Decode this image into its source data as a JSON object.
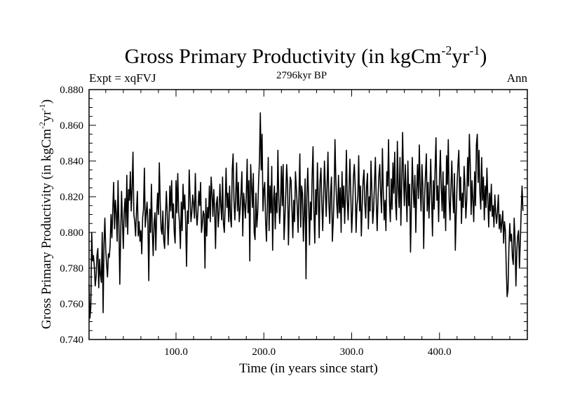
{
  "chart_data": {
    "type": "line",
    "title": "Gross Primary Productivity (in kgCm",
    "title_sup1": "-2",
    "title_mid": "yr",
    "title_sup2": "-1",
    "title_end": ")",
    "subtitle_left": "Expt = xqFVJ",
    "subtitle_center": "2796kyr BP",
    "subtitle_right": "Ann",
    "xlabel": "Time (in years since start)",
    "ylabel": "Gross Primary Productivity (in kgCm",
    "ylabel_sup1": "-2",
    "ylabel_mid": "yr",
    "ylabel_sup2": "-1",
    "ylabel_end": ")",
    "xlim": [
      1,
      500
    ],
    "ylim": [
      0.74,
      0.88
    ],
    "x_ticks": [
      100,
      200,
      300,
      400
    ],
    "x_tick_labels": [
      "100.0",
      "200.0",
      "300.0",
      "400.0"
    ],
    "y_ticks": [
      0.74,
      0.76,
      0.78,
      0.8,
      0.82,
      0.84,
      0.86,
      0.88
    ],
    "y_tick_labels": [
      "0.740",
      "0.760",
      "0.780",
      "0.800",
      "0.820",
      "0.840",
      "0.860",
      "0.880"
    ],
    "grid": false,
    "series": [
      {
        "name": "Gross Primary Productivity",
        "x_start": 1,
        "x_step": 1,
        "values": [
          0.771,
          0.752,
          0.758,
          0.8,
          0.784,
          0.787,
          0.781,
          0.77,
          0.775,
          0.787,
          0.791,
          0.769,
          0.785,
          0.776,
          0.772,
          0.8,
          0.755,
          0.793,
          0.808,
          0.79,
          0.782,
          0.775,
          0.788,
          0.786,
          0.793,
          0.81,
          0.797,
          0.813,
          0.828,
          0.802,
          0.818,
          0.811,
          0.795,
          0.829,
          0.804,
          0.771,
          0.799,
          0.823,
          0.806,
          0.791,
          0.812,
          0.819,
          0.803,
          0.832,
          0.799,
          0.824,
          0.818,
          0.834,
          0.812,
          0.825,
          0.845,
          0.81,
          0.806,
          0.798,
          0.812,
          0.823,
          0.798,
          0.806,
          0.795,
          0.801,
          0.788,
          0.808,
          0.813,
          0.836,
          0.803,
          0.81,
          0.817,
          0.805,
          0.773,
          0.813,
          0.8,
          0.827,
          0.801,
          0.787,
          0.805,
          0.811,
          0.79,
          0.81,
          0.822,
          0.81,
          0.839,
          0.817,
          0.802,
          0.799,
          0.812,
          0.796,
          0.791,
          0.808,
          0.823,
          0.811,
          0.793,
          0.807,
          0.826,
          0.812,
          0.829,
          0.808,
          0.816,
          0.8,
          0.794,
          0.829,
          0.811,
          0.833,
          0.812,
          0.805,
          0.791,
          0.817,
          0.801,
          0.827,
          0.813,
          0.821,
          0.805,
          0.781,
          0.812,
          0.805,
          0.835,
          0.82,
          0.806,
          0.811,
          0.821,
          0.816,
          0.808,
          0.833,
          0.811,
          0.804,
          0.812,
          0.823,
          0.815,
          0.828,
          0.8,
          0.805,
          0.812,
          0.81,
          0.78,
          0.819,
          0.798,
          0.814,
          0.808,
          0.826,
          0.806,
          0.831,
          0.822,
          0.809,
          0.824,
          0.813,
          0.791,
          0.816,
          0.82,
          0.803,
          0.811,
          0.827,
          0.815,
          0.807,
          0.831,
          0.805,
          0.8,
          0.815,
          0.836,
          0.814,
          0.822,
          0.806,
          0.826,
          0.808,
          0.803,
          0.835,
          0.844,
          0.818,
          0.807,
          0.82,
          0.839,
          0.812,
          0.828,
          0.806,
          0.813,
          0.822,
          0.834,
          0.798,
          0.822,
          0.816,
          0.808,
          0.821,
          0.841,
          0.811,
          0.829,
          0.784,
          0.838,
          0.826,
          0.814,
          0.833,
          0.8,
          0.796,
          0.822,
          0.803,
          0.811,
          0.828,
          0.84,
          0.867,
          0.835,
          0.855,
          0.812,
          0.824,
          0.828,
          0.806,
          0.795,
          0.816,
          0.842,
          0.801,
          0.826,
          0.811,
          0.837,
          0.79,
          0.818,
          0.826,
          0.802,
          0.822,
          0.811,
          0.846,
          0.819,
          0.805,
          0.816,
          0.837,
          0.815,
          0.838,
          0.796,
          0.808,
          0.822,
          0.838,
          0.827,
          0.793,
          0.814,
          0.831,
          0.829,
          0.813,
          0.797,
          0.818,
          0.806,
          0.834,
          0.825,
          0.815,
          0.8,
          0.822,
          0.844,
          0.803,
          0.826,
          0.822,
          0.795,
          0.81,
          0.83,
          0.774,
          0.82,
          0.836,
          0.818,
          0.793,
          0.817,
          0.807,
          0.832,
          0.848,
          0.812,
          0.794,
          0.824,
          0.81,
          0.839,
          0.82,
          0.797,
          0.829,
          0.836,
          0.817,
          0.801,
          0.819,
          0.84,
          0.825,
          0.809,
          0.826,
          0.845,
          0.817,
          0.805,
          0.822,
          0.831,
          0.795,
          0.806,
          0.821,
          0.852,
          0.829,
          0.816,
          0.808,
          0.832,
          0.811,
          0.825,
          0.8,
          0.834,
          0.814,
          0.826,
          0.805,
          0.822,
          0.846,
          0.818,
          0.807,
          0.824,
          0.841,
          0.821,
          0.8,
          0.812,
          0.831,
          0.838,
          0.826,
          0.8,
          0.815,
          0.82,
          0.843,
          0.812,
          0.826,
          0.798,
          0.815,
          0.829,
          0.835,
          0.816,
          0.808,
          0.826,
          0.833,
          0.802,
          0.82,
          0.812,
          0.84,
          0.823,
          0.805,
          0.813,
          0.828,
          0.842,
          0.817,
          0.801,
          0.819,
          0.832,
          0.838,
          0.822,
          0.811,
          0.847,
          0.823,
          0.807,
          0.818,
          0.801,
          0.834,
          0.826,
          0.852,
          0.817,
          0.806,
          0.83,
          0.813,
          0.839,
          0.822,
          0.845,
          0.816,
          0.807,
          0.851,
          0.825,
          0.814,
          0.842,
          0.804,
          0.827,
          0.856,
          0.831,
          0.815,
          0.838,
          0.822,
          0.806,
          0.84,
          0.815,
          0.827,
          0.789,
          0.815,
          0.842,
          0.825,
          0.814,
          0.832,
          0.8,
          0.823,
          0.838,
          0.819,
          0.849,
          0.825,
          0.812,
          0.838,
          0.826,
          0.791,
          0.819,
          0.832,
          0.844,
          0.812,
          0.828,
          0.808,
          0.823,
          0.841,
          0.819,
          0.798,
          0.829,
          0.813,
          0.836,
          0.853,
          0.818,
          0.826,
          0.806,
          0.831,
          0.846,
          0.825,
          0.812,
          0.834,
          0.808,
          0.826,
          0.801,
          0.843,
          0.827,
          0.852,
          0.818,
          0.807,
          0.825,
          0.84,
          0.822,
          0.811,
          0.833,
          0.79,
          0.81,
          0.827,
          0.838,
          0.846,
          0.818,
          0.831,
          0.805,
          0.822,
          0.814,
          0.837,
          0.826,
          0.808,
          0.818,
          0.842,
          0.826,
          0.855,
          0.838,
          0.81,
          0.829,
          0.818,
          0.806,
          0.834,
          0.815,
          0.849,
          0.855,
          0.828,
          0.846,
          0.822,
          0.813,
          0.842,
          0.818,
          0.831,
          0.807,
          0.826,
          0.814,
          0.836,
          0.819,
          0.803,
          0.822,
          0.812,
          0.827,
          0.809,
          0.815,
          0.803,
          0.821,
          0.811,
          0.805,
          0.812,
          0.821,
          0.802,
          0.81,
          0.8,
          0.806,
          0.812,
          0.794,
          0.806,
          0.801,
          0.78,
          0.764,
          0.768,
          0.791,
          0.805,
          0.795,
          0.799,
          0.786,
          0.782,
          0.808,
          0.796,
          0.77,
          0.789,
          0.798,
          0.801,
          0.78,
          0.795,
          0.812,
          0.826,
          0.812
        ]
      }
    ]
  }
}
